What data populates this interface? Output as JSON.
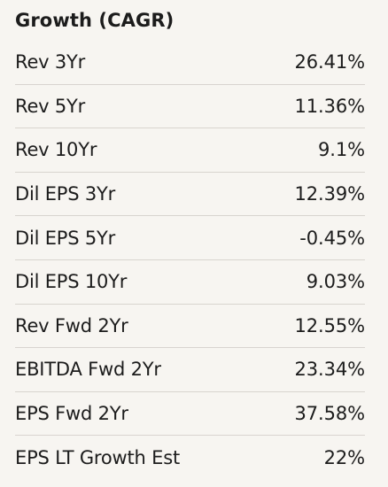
{
  "panel": {
    "title": "Growth (CAGR)",
    "rows": [
      {
        "label": "Rev 3Yr",
        "value": "26.41%"
      },
      {
        "label": "Rev 5Yr",
        "value": "11.36%"
      },
      {
        "label": "Rev 10Yr",
        "value": "9.1%"
      },
      {
        "label": "Dil EPS 3Yr",
        "value": "12.39%"
      },
      {
        "label": "Dil EPS 5Yr",
        "value": "-0.45%"
      },
      {
        "label": "Dil EPS 10Yr",
        "value": "9.03%"
      },
      {
        "label": "Rev Fwd 2Yr",
        "value": "12.55%"
      },
      {
        "label": "EBITDA Fwd 2Yr",
        "value": "23.34%"
      },
      {
        "label": "EPS Fwd 2Yr",
        "value": "37.58%"
      },
      {
        "label": "EPS LT Growth Est",
        "value": "22%"
      }
    ]
  }
}
